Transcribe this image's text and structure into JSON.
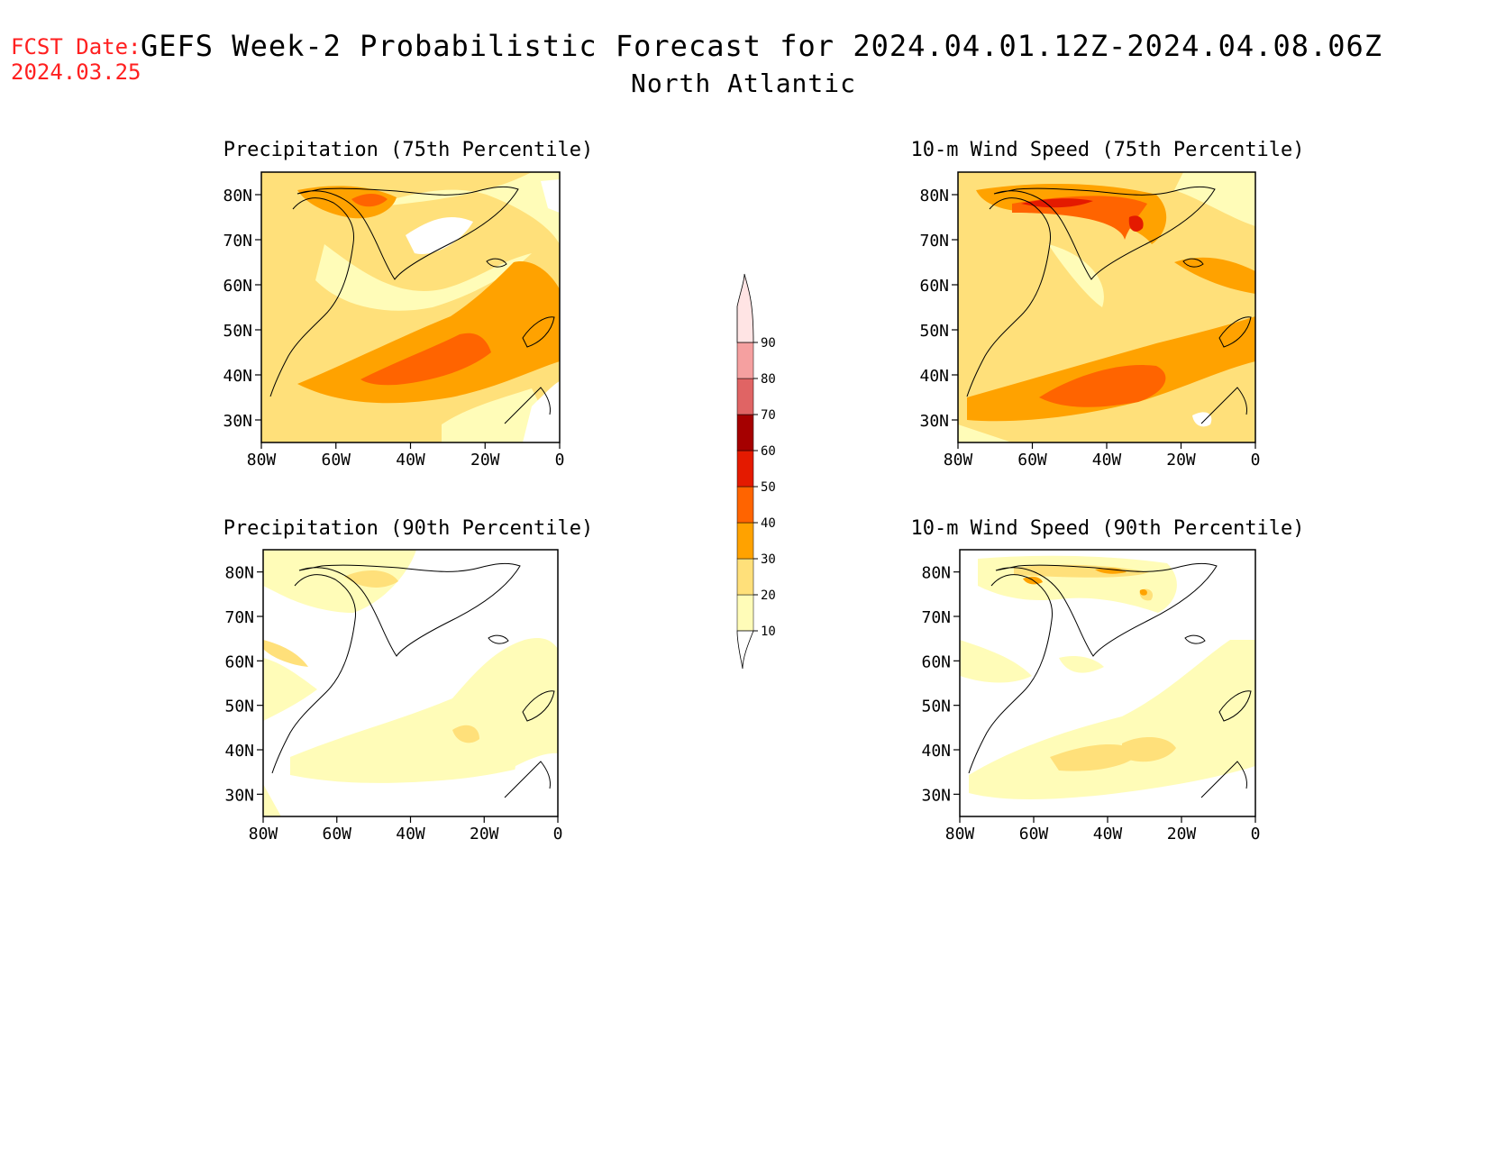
{
  "header": {
    "fcst_label": "FCST Date:",
    "fcst_date": "2024.03.25",
    "title": "GEFS Week-2 Probabilistic Forecast for 2024.04.01.12Z-2024.04.08.06Z",
    "subtitle": "North Atlantic"
  },
  "colors": {
    "c10": "#fffcb8",
    "c20": "#ffe07a",
    "c30": "#ffa200",
    "c40": "#ff6400",
    "c50": "#e41a00",
    "c60": "#a50000",
    "c70": "#e06464",
    "c80": "#f5a0a0",
    "c90": "#ffe4e4"
  },
  "panels": [
    {
      "title": "Precipitation (75th Percentile)"
    },
    {
      "title": "10-m Wind Speed (75th Percentile)"
    },
    {
      "title": "Precipitation (90th Percentile)"
    },
    {
      "title": "10-m Wind Speed (90th Percentile)"
    }
  ],
  "axes": {
    "lat_labels": [
      "80N",
      "70N",
      "60N",
      "50N",
      "40N",
      "30N"
    ],
    "lon_labels": [
      "80W",
      "60W",
      "40W",
      "20W",
      "0"
    ]
  },
  "colorbar": {
    "levels": [
      "10",
      "20",
      "30",
      "40",
      "50",
      "60",
      "70",
      "80",
      "90"
    ]
  }
}
